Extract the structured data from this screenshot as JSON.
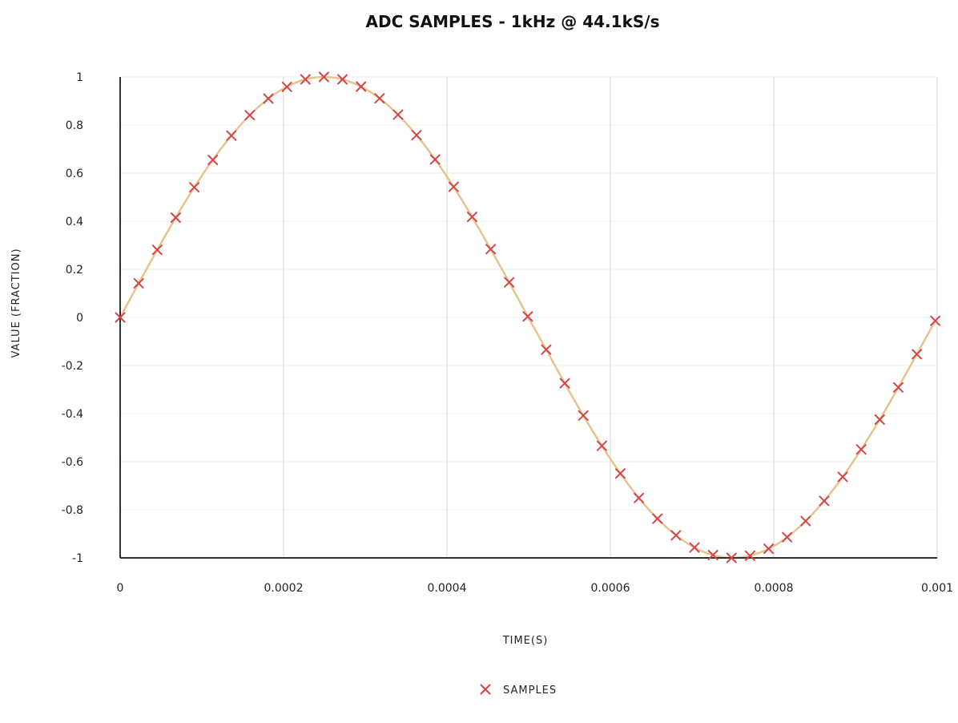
{
  "chart_data": {
    "type": "scatter",
    "title": "ADC SAMPLES - 1kHz @ 44.1kS/s",
    "xlabel": "TIME(S)",
    "ylabel": "VALUE (FRACTION)",
    "xlim": [
      0,
      0.001
    ],
    "ylim": [
      -1,
      1
    ],
    "x_ticks": [
      "0",
      "0.0002",
      "0.0004",
      "0.0006",
      "0.0008",
      "0.001"
    ],
    "y_ticks": [
      "1",
      "0.8",
      "0.6",
      "0.4",
      "0.2",
      "0",
      "-0.2",
      "-0.4",
      "-0.6",
      "-0.8",
      "-1"
    ],
    "grid": true,
    "legend": {
      "position": "bottom-center",
      "marker": "×"
    },
    "colors": {
      "samples": "#d64545",
      "curve": "#e6c38f",
      "grid": "#d9d9d9",
      "axis": "#333333"
    },
    "series": [
      {
        "name": "SAMPLES",
        "points": [
          {
            "x": 0,
            "y": 0
          },
          {
            "x": 2.27e-05,
            "y": 0.142
          },
          {
            "x": 4.54e-05,
            "y": 0.281
          },
          {
            "x": 6.8e-05,
            "y": 0.415
          },
          {
            "x": 9.07e-05,
            "y": 0.541
          },
          {
            "x": 0.0001134,
            "y": 0.655
          },
          {
            "x": 0.0001361,
            "y": 0.756
          },
          {
            "x": 0.0001587,
            "y": 0.841
          },
          {
            "x": 0.0001814,
            "y": 0.91
          },
          {
            "x": 0.0002041,
            "y": 0.959
          },
          {
            "x": 0.0002268,
            "y": 0.99
          },
          {
            "x": 0.0002494,
            "y": 1.0
          },
          {
            "x": 0.0002721,
            "y": 0.99
          },
          {
            "x": 0.0002948,
            "y": 0.96
          },
          {
            "x": 0.0003175,
            "y": 0.911
          },
          {
            "x": 0.0003401,
            "y": 0.843
          },
          {
            "x": 0.0003628,
            "y": 0.758
          },
          {
            "x": 0.0003855,
            "y": 0.657
          },
          {
            "x": 0.0004082,
            "y": 0.543
          },
          {
            "x": 0.0004308,
            "y": 0.418
          },
          {
            "x": 0.0004535,
            "y": 0.284
          },
          {
            "x": 0.0004762,
            "y": 0.146
          },
          {
            "x": 0.0004989,
            "y": 0.004
          },
          {
            "x": 0.0005215,
            "y": -0.134
          },
          {
            "x": 0.0005442,
            "y": -0.274
          },
          {
            "x": 0.0005669,
            "y": -0.408
          },
          {
            "x": 0.0005896,
            "y": -0.534
          },
          {
            "x": 0.0006122,
            "y": -0.649
          },
          {
            "x": 0.0006349,
            "y": -0.751
          },
          {
            "x": 0.0006576,
            "y": -0.837
          },
          {
            "x": 0.0006803,
            "y": -0.906
          },
          {
            "x": 0.0007029,
            "y": -0.957
          },
          {
            "x": 0.0007256,
            "y": -0.988
          },
          {
            "x": 0.0007483,
            "y": -1.0
          },
          {
            "x": 0.000771,
            "y": -0.991
          },
          {
            "x": 0.0007937,
            "y": -0.962
          },
          {
            "x": 0.0008163,
            "y": -0.914
          },
          {
            "x": 0.000839,
            "y": -0.847
          },
          {
            "x": 0.0008617,
            "y": -0.763
          },
          {
            "x": 0.0008844,
            "y": -0.663
          },
          {
            "x": 0.000907,
            "y": -0.549
          },
          {
            "x": 0.0009297,
            "y": -0.425
          },
          {
            "x": 0.0009524,
            "y": -0.291
          },
          {
            "x": 0.0009751,
            "y": -0.153
          },
          {
            "x": 0.0009977,
            "y": -0.014
          }
        ]
      }
    ]
  }
}
